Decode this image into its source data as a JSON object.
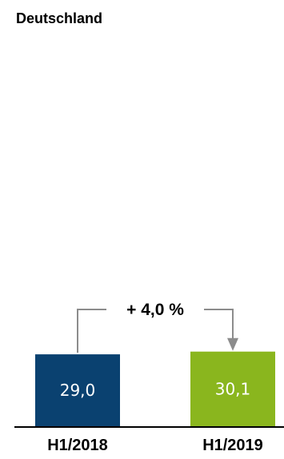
{
  "chart_data": {
    "type": "bar",
    "title": "Deutschland",
    "categories": [
      "H1/2018",
      "H1/2019"
    ],
    "values": [
      29.0,
      30.1
    ],
    "value_labels": [
      "29,0",
      "30,1"
    ],
    "colors": [
      "#0a4170",
      "#8ab61e"
    ],
    "change_label": "+ 4,0 %",
    "connector_color": "#8c8c8c",
    "grid": false,
    "legend": "none",
    "xlabel": "",
    "ylabel": ""
  }
}
